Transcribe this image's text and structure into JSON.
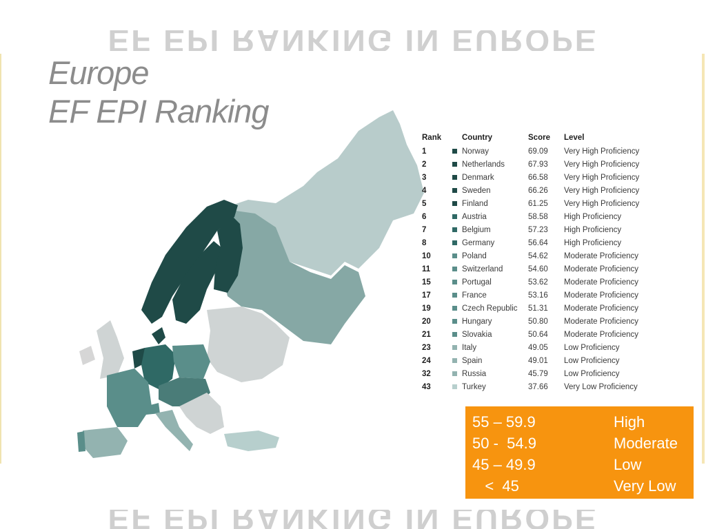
{
  "ghost_heading": "EF EPI RANKING IN EUROPE",
  "title": {
    "line1": "Europe",
    "line2": "EF EPI Ranking"
  },
  "table": {
    "headers": {
      "rank": "Rank",
      "country": "Country",
      "score": "Score",
      "level": "Level"
    },
    "rows": [
      {
        "rank": "1",
        "country": "Norway",
        "score": "69.09",
        "level": "Very High Proficiency",
        "color": "#1f4a47"
      },
      {
        "rank": "2",
        "country": "Netherlands",
        "score": "67.93",
        "level": "Very High Proficiency",
        "color": "#1f4a47"
      },
      {
        "rank": "3",
        "country": "Denmark",
        "score": "66.58",
        "level": "Very High Proficiency",
        "color": "#1f4a47"
      },
      {
        "rank": "4",
        "country": "Sweden",
        "score": "66.26",
        "level": "Very High Proficiency",
        "color": "#1f4a47"
      },
      {
        "rank": "5",
        "country": "Finland",
        "score": "61.25",
        "level": "Very High Proficiency",
        "color": "#1f4a47"
      },
      {
        "rank": "6",
        "country": "Austria",
        "score": "58.58",
        "level": "High Proficiency",
        "color": "#2f6965"
      },
      {
        "rank": "7",
        "country": "Belgium",
        "score": "57.23",
        "level": "High Proficiency",
        "color": "#2f6965"
      },
      {
        "rank": "8",
        "country": "Germany",
        "score": "56.64",
        "level": "High Proficiency",
        "color": "#2f6965"
      },
      {
        "rank": "10",
        "country": "Poland",
        "score": "54.62",
        "level": "Moderate Proficiency",
        "color": "#5a8e8a"
      },
      {
        "rank": "11",
        "country": "Switzerland",
        "score": "54.60",
        "level": "Moderate Proficiency",
        "color": "#5a8e8a"
      },
      {
        "rank": "15",
        "country": "Portugal",
        "score": "53.62",
        "level": "Moderate Proficiency",
        "color": "#5a8e8a"
      },
      {
        "rank": "17",
        "country": "France",
        "score": "53.16",
        "level": "Moderate Proficiency",
        "color": "#5a8e8a"
      },
      {
        "rank": "19",
        "country": "Czech Republic",
        "score": "51.31",
        "level": "Moderate Proficiency",
        "color": "#5a8e8a"
      },
      {
        "rank": "20",
        "country": "Hungary",
        "score": "50.80",
        "level": "Moderate Proficiency",
        "color": "#5a8e8a"
      },
      {
        "rank": "21",
        "country": "Slovakia",
        "score": "50.64",
        "level": "Moderate Proficiency",
        "color": "#5a8e8a"
      },
      {
        "rank": "23",
        "country": "Italy",
        "score": "49.05",
        "level": "Low Proficiency",
        "color": "#93b3b0"
      },
      {
        "rank": "24",
        "country": "Spain",
        "score": "49.01",
        "level": "Low Proficiency",
        "color": "#93b3b0"
      },
      {
        "rank": "32",
        "country": "Russia",
        "score": "45.79",
        "level": "Low Proficiency",
        "color": "#93b3b0"
      },
      {
        "rank": "43",
        "country": "Turkey",
        "score": "37.66",
        "level": "Very Low Proficiency",
        "color": "#b7cfcd"
      }
    ]
  },
  "legend": [
    {
      "range": "55 – 59.9",
      "label": "High"
    },
    {
      "range": "50 -  54.9",
      "label": "Moderate"
    },
    {
      "range": "45 – 49.9",
      "label": "Low"
    },
    {
      "range": "   <  45",
      "label": "Very Low"
    }
  ],
  "colors": {
    "very_high": "#1f4a47",
    "high": "#2f6965",
    "moderate": "#5a8e8a",
    "low": "#93b3b0",
    "very_low": "#b7cfcd",
    "no_data": "#d6d6d6",
    "legend_bg": "#f7940f"
  }
}
